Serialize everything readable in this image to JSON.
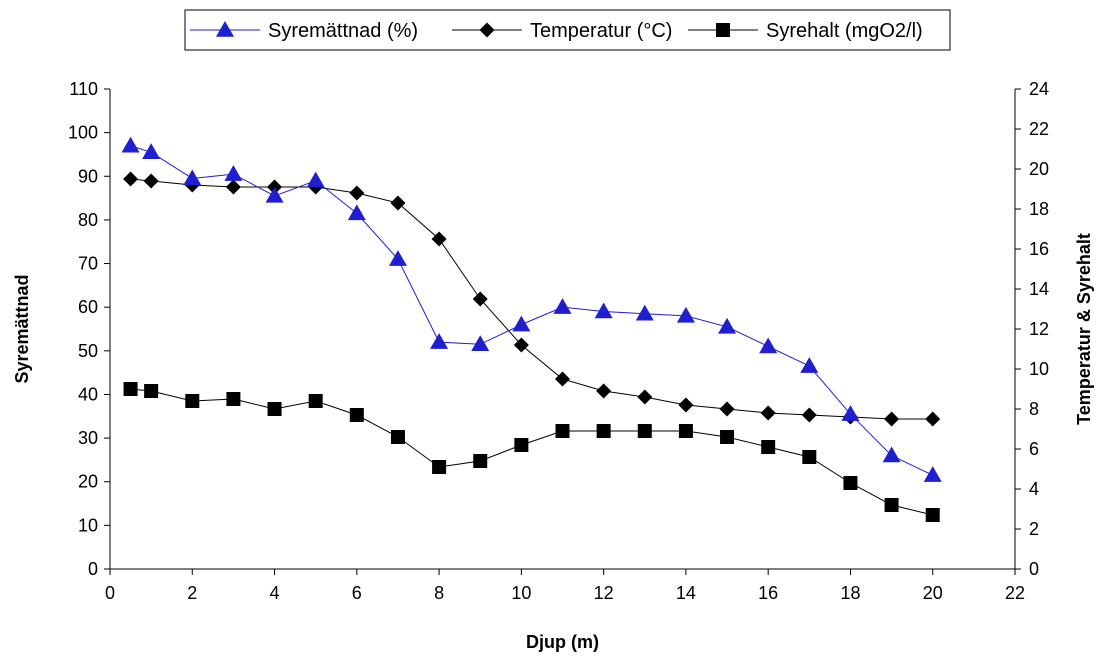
{
  "chart_data": {
    "type": "line",
    "xlabel": "Djup (m)",
    "ylabel": "Syremättnad",
    "y2label": "Temperatur & Syrehalt",
    "xlim": [
      0,
      22
    ],
    "ylim": [
      0,
      110
    ],
    "y2lim": [
      0,
      24
    ],
    "xticks": [
      0,
      2,
      4,
      6,
      8,
      10,
      12,
      14,
      16,
      18,
      20,
      22
    ],
    "yticks": [
      0,
      10,
      20,
      30,
      40,
      50,
      60,
      70,
      80,
      90,
      100,
      110
    ],
    "y2ticks": [
      0,
      2,
      4,
      6,
      8,
      10,
      12,
      14,
      16,
      18,
      20,
      22,
      24
    ],
    "grid": false,
    "legend_position": "top-center",
    "series": [
      {
        "name": "Syremättnad (%)",
        "axis": "left",
        "marker": "triangle",
        "color": "#1f1fd0",
        "x": [
          0.5,
          1,
          2,
          3,
          4,
          5,
          6,
          7,
          8,
          9,
          10,
          11,
          12,
          13,
          14,
          15,
          16,
          17,
          18,
          19,
          20
        ],
        "y": [
          97,
          95.5,
          89.5,
          90.5,
          85.5,
          89,
          81.5,
          71,
          52,
          51.5,
          56,
          60,
          59,
          58.5,
          58,
          55.5,
          51,
          46.5,
          35.5,
          26,
          21.5
        ]
      },
      {
        "name": "Temperatur (°C)",
        "axis": "right",
        "marker": "diamond",
        "color": "#000000",
        "x": [
          0.5,
          1,
          2,
          3,
          4,
          5,
          6,
          7,
          8,
          9,
          10,
          11,
          12,
          13,
          14,
          15,
          16,
          17,
          18,
          19,
          20
        ],
        "y": [
          19.5,
          19.4,
          19.2,
          19.1,
          19.1,
          19.1,
          18.8,
          18.3,
          16.5,
          13.5,
          11.2,
          9.5,
          8.9,
          8.6,
          8.2,
          8.0,
          7.8,
          7.7,
          7.6,
          7.5,
          7.5
        ]
      },
      {
        "name": "Syrehalt (mgO2/l)",
        "axis": "right",
        "marker": "square",
        "color": "#000000",
        "x": [
          0.5,
          1,
          2,
          3,
          4,
          5,
          6,
          7,
          8,
          9,
          10,
          11,
          12,
          13,
          14,
          15,
          16,
          17,
          18,
          19,
          20
        ],
        "y": [
          9.0,
          8.9,
          8.4,
          8.5,
          8.0,
          8.4,
          7.7,
          6.6,
          5.1,
          5.4,
          6.2,
          6.9,
          6.9,
          6.9,
          6.9,
          6.6,
          6.1,
          5.6,
          4.3,
          3.2,
          2.7
        ]
      }
    ]
  }
}
